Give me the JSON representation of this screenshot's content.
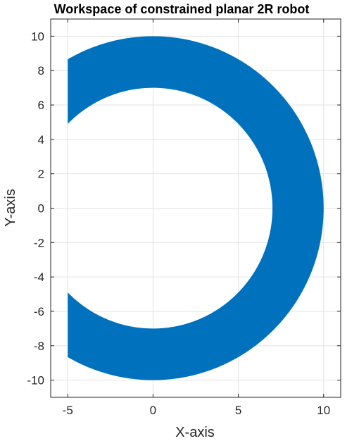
{
  "chart_data": {
    "type": "area",
    "title": "Workspace of constrained planar 2R robot",
    "xlabel": "X-axis",
    "ylabel": "Y-axis",
    "xlim": [
      -6,
      11
    ],
    "ylim": [
      -11,
      11
    ],
    "xticks": [
      -5,
      0,
      5,
      10
    ],
    "yticks": [
      -10,
      -8,
      -6,
      -4,
      -2,
      0,
      2,
      4,
      6,
      8,
      10
    ],
    "xtick_labels": [
      "-5",
      "0",
      "5",
      "10"
    ],
    "ytick_labels": [
      "-10",
      "-8",
      "-6",
      "-4",
      "-2",
      "0",
      "2",
      "4",
      "6",
      "8",
      "10"
    ],
    "grid": true,
    "fill_color": "#0072BD",
    "series": [
      {
        "shape": "annular sector",
        "center": [
          0,
          0
        ],
        "outer_radius": 10,
        "inner_radius": 7,
        "outer_arc_end_points": [
          [
            -5,
            8.66
          ],
          [
            -5,
            -8.66
          ]
        ],
        "inner_arc_end_points": [
          [
            -5,
            4.9
          ],
          [
            -5,
            -4.9
          ]
        ]
      }
    ]
  }
}
